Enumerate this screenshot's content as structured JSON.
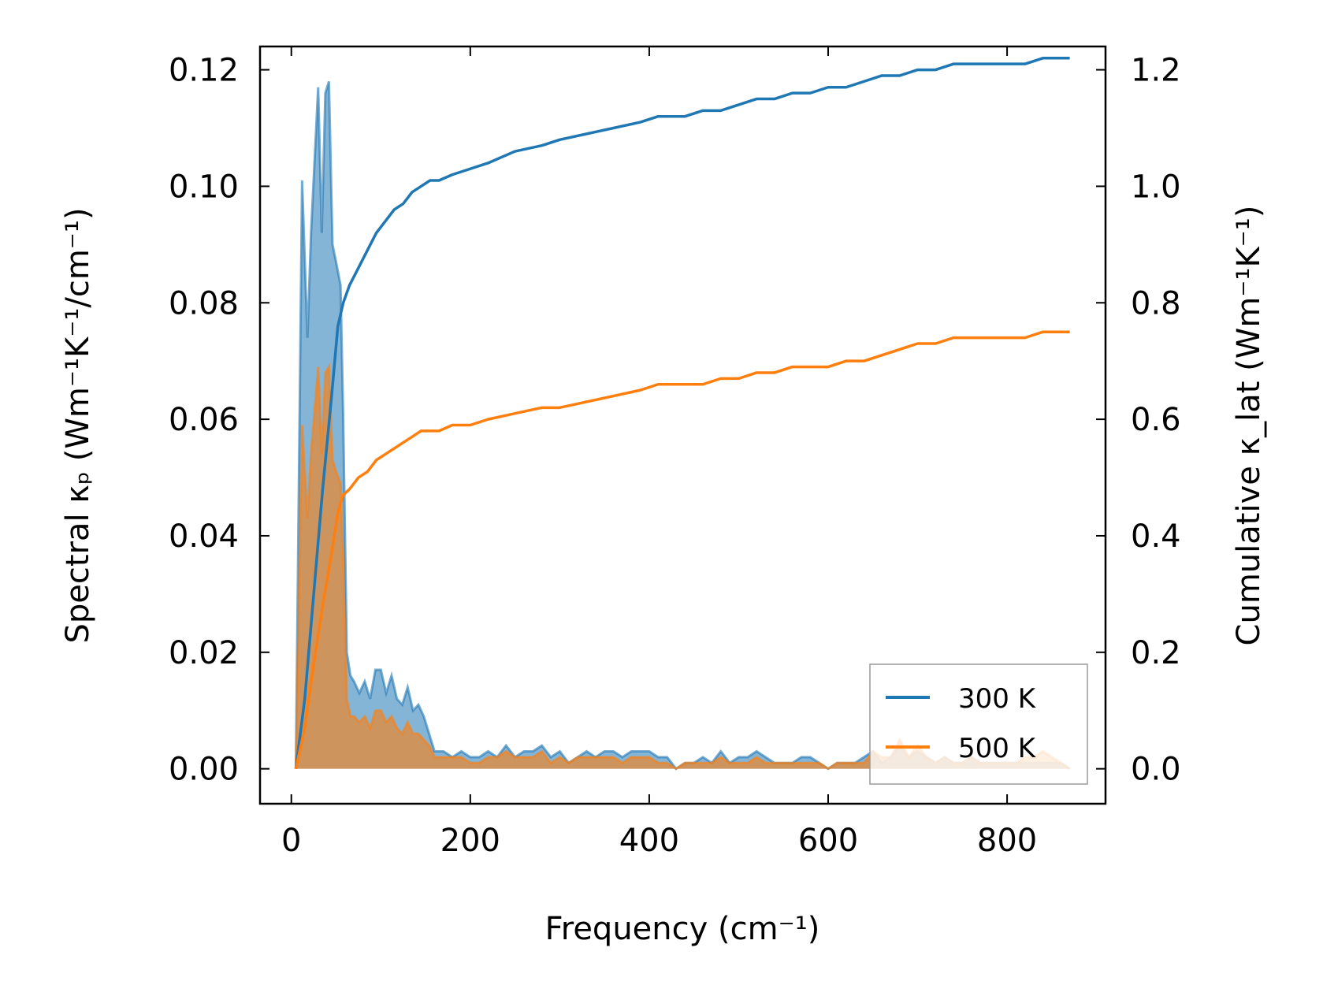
{
  "chart_data": {
    "type": "line",
    "title": "",
    "xlabel": "Frequency (cm⁻¹)",
    "ylabel_left": "Spectral κₚ (Wm⁻¹K⁻¹/cm⁻¹)",
    "ylabel_right": "Cumulative κ_lat (Wm⁻¹K⁻¹)",
    "xlim": [
      -35,
      910
    ],
    "ylim_left": [
      -0.006,
      0.124
    ],
    "ylim_right": [
      -0.06,
      1.24
    ],
    "xticks": [
      "0",
      "200",
      "400",
      "600",
      "800"
    ],
    "yticks_left": [
      "0.00",
      "0.02",
      "0.04",
      "0.06",
      "0.08",
      "0.10",
      "0.12"
    ],
    "yticks_right": [
      "0.0",
      "0.2",
      "0.4",
      "0.6",
      "0.8",
      "1.0",
      "1.2"
    ],
    "legend_position": "lower-right",
    "series": [
      {
        "name": "300 K",
        "color": "#1f77b4",
        "spectral": {
          "x": [
            5,
            12,
            18,
            22,
            30,
            34,
            38,
            42,
            46,
            50,
            55,
            58,
            62,
            66,
            70,
            76,
            82,
            88,
            94,
            100,
            106,
            112,
            118,
            124,
            130,
            136,
            142,
            148,
            154,
            160,
            170,
            180,
            190,
            200,
            210,
            220,
            230,
            240,
            250,
            260,
            270,
            280,
            290,
            300,
            310,
            320,
            330,
            340,
            350,
            360,
            370,
            380,
            390,
            400,
            410,
            420,
            430,
            440,
            450,
            460,
            470,
            480,
            490,
            500,
            510,
            520,
            530,
            540,
            550,
            560,
            570,
            580,
            590,
            600,
            610,
            620,
            630,
            640,
            650,
            660,
            670,
            680,
            690,
            700,
            710,
            720,
            730,
            740,
            750,
            760,
            770,
            780,
            790,
            800,
            810,
            820,
            830,
            840,
            850,
            860,
            870
          ],
          "y": [
            0.0,
            0.101,
            0.074,
            0.092,
            0.117,
            0.092,
            0.116,
            0.118,
            0.09,
            0.087,
            0.083,
            0.06,
            0.02,
            0.016,
            0.015,
            0.013,
            0.015,
            0.012,
            0.017,
            0.017,
            0.013,
            0.016,
            0.012,
            0.011,
            0.014,
            0.01,
            0.011,
            0.009,
            0.006,
            0.003,
            0.003,
            0.002,
            0.003,
            0.002,
            0.002,
            0.003,
            0.002,
            0.004,
            0.002,
            0.003,
            0.003,
            0.004,
            0.002,
            0.003,
            0.001,
            0.002,
            0.003,
            0.002,
            0.003,
            0.003,
            0.002,
            0.003,
            0.003,
            0.003,
            0.002,
            0.002,
            0.0,
            0.001,
            0.001,
            0.002,
            0.001,
            0.003,
            0.001,
            0.002,
            0.002,
            0.003,
            0.002,
            0.001,
            0.001,
            0.001,
            0.002,
            0.002,
            0.001,
            0.0,
            0.001,
            0.001,
            0.001,
            0.002,
            0.003,
            0.001,
            0.002,
            0.004,
            0.002,
            0.003,
            0.002,
            0.001,
            0.002,
            0.001,
            0.001,
            0.002,
            0.001,
            0.001,
            0.001,
            0.001,
            0.001,
            0.001,
            0.001,
            0.001,
            0.001,
            0.001,
            0.0
          ]
        },
        "cumulative": {
          "x": [
            5,
            15,
            25,
            35,
            45,
            52,
            58,
            65,
            75,
            85,
            95,
            105,
            115,
            125,
            135,
            145,
            155,
            165,
            180,
            200,
            220,
            250,
            280,
            300,
            330,
            360,
            390,
            410,
            440,
            460,
            480,
            500,
            520,
            540,
            560,
            580,
            600,
            620,
            640,
            660,
            680,
            700,
            720,
            740,
            760,
            780,
            800,
            820,
            840,
            860,
            870
          ],
          "y": [
            0.0,
            0.12,
            0.3,
            0.48,
            0.64,
            0.76,
            0.8,
            0.83,
            0.86,
            0.89,
            0.92,
            0.94,
            0.96,
            0.97,
            0.99,
            1.0,
            1.01,
            1.01,
            1.02,
            1.03,
            1.04,
            1.06,
            1.07,
            1.08,
            1.09,
            1.1,
            1.11,
            1.12,
            1.12,
            1.13,
            1.13,
            1.14,
            1.15,
            1.15,
            1.16,
            1.16,
            1.17,
            1.17,
            1.18,
            1.19,
            1.19,
            1.2,
            1.2,
            1.21,
            1.21,
            1.21,
            1.21,
            1.21,
            1.22,
            1.22,
            1.22
          ]
        }
      },
      {
        "name": "500 K",
        "color": "#ff7f0e",
        "spectral": {
          "x": [
            5,
            12,
            18,
            22,
            30,
            34,
            38,
            42,
            46,
            50,
            55,
            58,
            62,
            66,
            70,
            76,
            82,
            88,
            94,
            100,
            106,
            112,
            118,
            124,
            130,
            136,
            142,
            148,
            154,
            160,
            170,
            180,
            190,
            200,
            210,
            220,
            230,
            240,
            250,
            260,
            270,
            280,
            290,
            300,
            310,
            320,
            330,
            340,
            350,
            360,
            370,
            380,
            390,
            400,
            410,
            420,
            430,
            440,
            450,
            460,
            470,
            480,
            490,
            500,
            510,
            520,
            530,
            540,
            550,
            560,
            570,
            580,
            590,
            600,
            610,
            620,
            630,
            640,
            650,
            660,
            670,
            680,
            690,
            700,
            710,
            720,
            730,
            740,
            750,
            760,
            770,
            780,
            790,
            800,
            810,
            820,
            830,
            840,
            850,
            860,
            870
          ],
          "y": [
            0.0,
            0.059,
            0.043,
            0.054,
            0.069,
            0.054,
            0.068,
            0.069,
            0.053,
            0.051,
            0.049,
            0.035,
            0.012,
            0.009,
            0.009,
            0.008,
            0.009,
            0.007,
            0.01,
            0.01,
            0.008,
            0.009,
            0.007,
            0.006,
            0.008,
            0.006,
            0.006,
            0.005,
            0.004,
            0.002,
            0.002,
            0.002,
            0.002,
            0.001,
            0.001,
            0.002,
            0.002,
            0.003,
            0.002,
            0.002,
            0.002,
            0.003,
            0.001,
            0.002,
            0.001,
            0.002,
            0.002,
            0.002,
            0.002,
            0.002,
            0.001,
            0.002,
            0.002,
            0.002,
            0.001,
            0.001,
            0.0,
            0.001,
            0.001,
            0.001,
            0.001,
            0.002,
            0.001,
            0.001,
            0.001,
            0.002,
            0.001,
            0.001,
            0.001,
            0.001,
            0.001,
            0.001,
            0.001,
            0.0,
            0.001,
            0.001,
            0.001,
            0.001,
            0.003,
            0.002,
            0.002,
            0.005,
            0.002,
            0.004,
            0.002,
            0.001,
            0.002,
            0.001,
            0.001,
            0.002,
            0.001,
            0.001,
            0.001,
            0.001,
            0.001,
            0.002,
            0.002,
            0.003,
            0.002,
            0.001,
            0.0
          ]
        },
        "cumulative": {
          "x": [
            5,
            15,
            25,
            35,
            45,
            52,
            58,
            65,
            75,
            85,
            95,
            105,
            115,
            125,
            135,
            145,
            155,
            165,
            180,
            200,
            220,
            250,
            280,
            300,
            330,
            360,
            390,
            410,
            440,
            460,
            480,
            500,
            520,
            540,
            560,
            580,
            600,
            620,
            640,
            660,
            680,
            700,
            720,
            740,
            760,
            780,
            800,
            820,
            840,
            860,
            870
          ],
          "y": [
            0.0,
            0.07,
            0.18,
            0.28,
            0.37,
            0.44,
            0.47,
            0.48,
            0.5,
            0.51,
            0.53,
            0.54,
            0.55,
            0.56,
            0.57,
            0.58,
            0.58,
            0.58,
            0.59,
            0.59,
            0.6,
            0.61,
            0.62,
            0.62,
            0.63,
            0.64,
            0.65,
            0.66,
            0.66,
            0.66,
            0.67,
            0.67,
            0.68,
            0.68,
            0.69,
            0.69,
            0.69,
            0.7,
            0.7,
            0.71,
            0.72,
            0.73,
            0.73,
            0.74,
            0.74,
            0.74,
            0.74,
            0.74,
            0.75,
            0.75,
            0.75
          ]
        }
      }
    ]
  }
}
